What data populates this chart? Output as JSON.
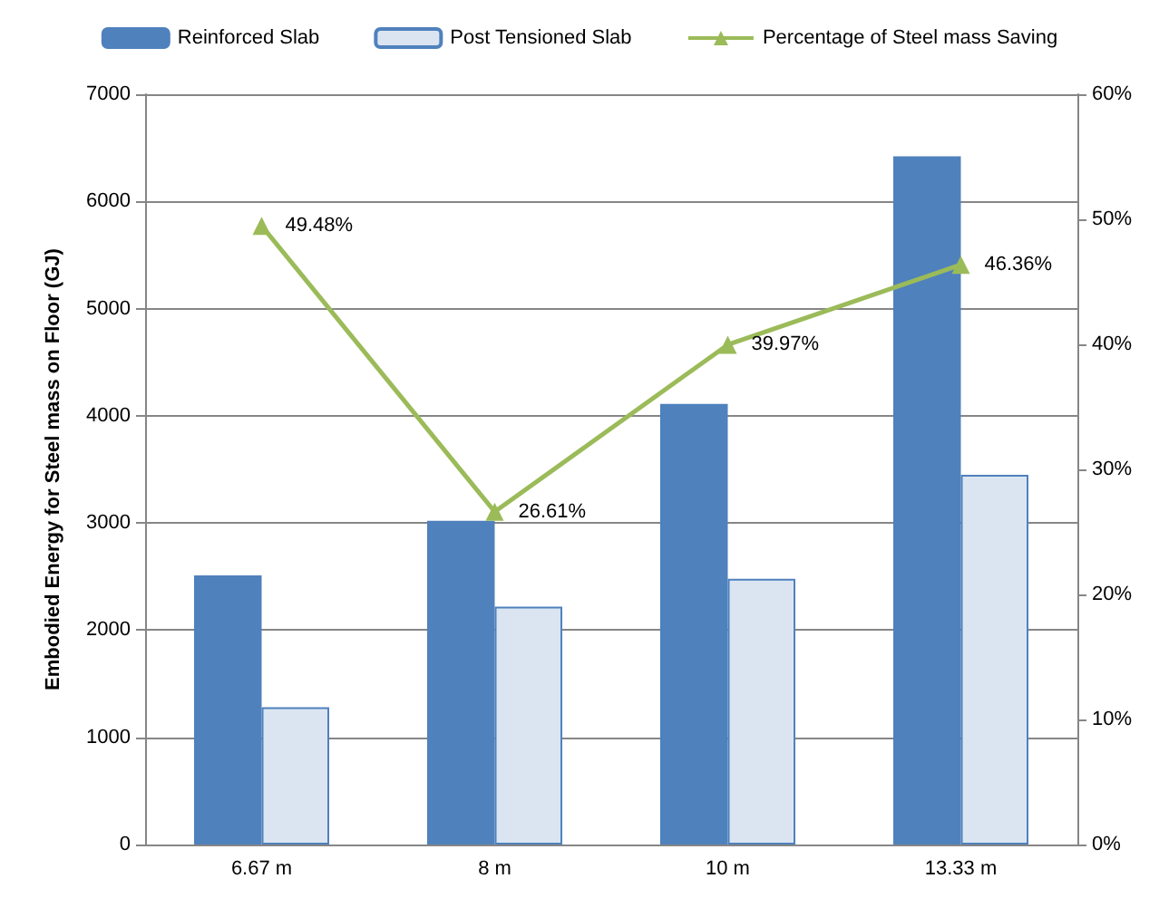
{
  "chart_data": {
    "type": "bar",
    "ylabel": "Embodied Energy for Steel mass on Floor (GJ)",
    "categories": [
      "6.67 m",
      "8 m",
      "10 m",
      "13.33 m"
    ],
    "series": [
      {
        "name": "Reinforced Slab",
        "color": "#4f81bd",
        "values": [
          2510,
          3020,
          4110,
          6420
        ]
      },
      {
        "name": "Post Tensioned Slab",
        "color": "#dbe5f1",
        "values": [
          1280,
          2220,
          2480,
          3450
        ]
      },
      {
        "name": "Percentage of Steel mass Saving",
        "type": "line",
        "axis": "y2",
        "color": "#9bbb59",
        "marker": "triangle",
        "values": [
          49.48,
          26.61,
          39.97,
          46.36
        ],
        "value_labels": [
          "49.48%",
          "26.61%",
          "39.97%",
          "46.36%"
        ]
      }
    ],
    "ylim": [
      0,
      7000
    ],
    "yticks": [
      0,
      1000,
      2000,
      3000,
      4000,
      5000,
      6000,
      7000
    ],
    "y2lim": [
      0,
      60
    ],
    "y2ticks": [
      {
        "value": 0,
        "label": "0%"
      },
      {
        "value": 10,
        "label": "10%"
      },
      {
        "value": 20,
        "label": "20%"
      },
      {
        "value": 30,
        "label": "30%"
      },
      {
        "value": 40,
        "label": "40%"
      },
      {
        "value": 50,
        "label": "50%"
      },
      {
        "value": 60,
        "label": "60%"
      }
    ],
    "grid": "y",
    "legend": "top"
  }
}
